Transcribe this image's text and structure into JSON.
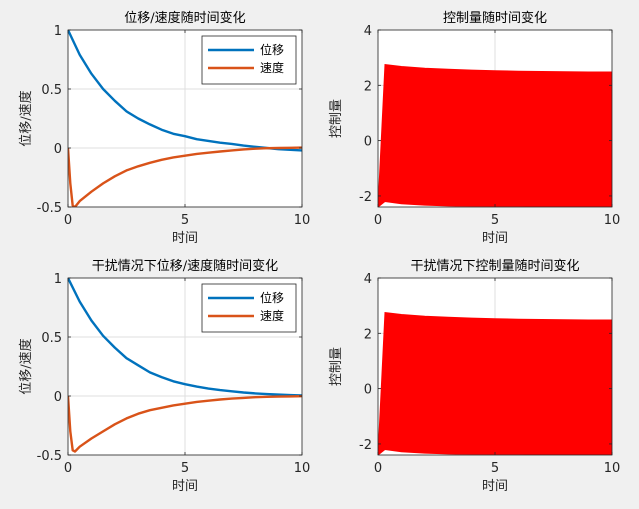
{
  "chart_data": [
    {
      "type": "line",
      "title": "位移/速度随时间变化",
      "xlabel": "时间",
      "ylabel": "位移/速度",
      "xlim": [
        0,
        10
      ],
      "ylim": [
        -0.5,
        1
      ],
      "xticks": [
        0,
        5,
        10
      ],
      "yticks": [
        -0.5,
        0,
        0.5,
        1
      ],
      "grid": true,
      "legend": "top-right",
      "series": [
        {
          "name": "位移",
          "color": "#0072BD",
          "x": [
            0,
            0.5,
            1,
            1.5,
            2,
            2.5,
            3,
            3.5,
            4,
            4.5,
            5,
            5.5,
            6,
            6.5,
            7,
            7.5,
            8,
            8.5,
            9,
            9.5,
            10
          ],
          "y": [
            1,
            0.79,
            0.63,
            0.5,
            0.4,
            0.31,
            0.25,
            0.2,
            0.155,
            0.12,
            0.1,
            0.075,
            0.06,
            0.045,
            0.035,
            0.02,
            0.01,
            0.0,
            -0.01,
            -0.015,
            -0.02
          ]
        },
        {
          "name": "速度",
          "color": "#D95319",
          "x": [
            0,
            0.1,
            0.2,
            0.3,
            0.5,
            1,
            1.5,
            2,
            2.5,
            3,
            3.5,
            4,
            4.5,
            5,
            5.5,
            6,
            6.5,
            7,
            7.5,
            8,
            8.5,
            9,
            9.5,
            10
          ],
          "y": [
            0,
            -0.3,
            -0.49,
            -0.5,
            -0.45,
            -0.37,
            -0.3,
            -0.24,
            -0.19,
            -0.155,
            -0.125,
            -0.1,
            -0.08,
            -0.065,
            -0.05,
            -0.04,
            -0.03,
            -0.02,
            -0.012,
            -0.006,
            -0.002,
            0,
            0.002,
            0.003
          ]
        }
      ]
    },
    {
      "type": "line",
      "title": "控制量随时间变化",
      "xlabel": "时间",
      "ylabel": "控制量",
      "xlim": [
        0,
        10
      ],
      "ylim": [
        -2.4,
        4
      ],
      "xticks": [
        0,
        5,
        10
      ],
      "yticks": [
        -2,
        0,
        2,
        4
      ],
      "grid": true,
      "series": [
        {
          "color": "#FF0000",
          "x": [
            0,
            0.3,
            1,
            2,
            3,
            4,
            5,
            6,
            7,
            8,
            9,
            10
          ],
          "upper": [
            -2.4,
            2.75,
            2.68,
            2.62,
            2.58,
            2.55,
            2.53,
            2.51,
            2.5,
            2.49,
            2.48,
            2.48
          ],
          "lower": [
            -2.4,
            -2.2,
            -2.28,
            -2.33,
            -2.36,
            -2.37,
            -2.38,
            -2.38,
            -2.39,
            -2.39,
            -2.39,
            -2.39
          ]
        }
      ]
    },
    {
      "type": "line",
      "title": "干扰情况下位移/速度随时间变化",
      "xlabel": "时间",
      "ylabel": "位移/速度",
      "xlim": [
        0,
        10
      ],
      "ylim": [
        -0.5,
        1
      ],
      "xticks": [
        0,
        5,
        10
      ],
      "yticks": [
        -0.5,
        0,
        0.5,
        1
      ],
      "grid": true,
      "legend": "top-right",
      "series": [
        {
          "name": "位移",
          "color": "#0072BD",
          "x": [
            0,
            0.5,
            1,
            1.5,
            2,
            2.5,
            3,
            3.5,
            4,
            4.5,
            5,
            5.5,
            6,
            6.5,
            7,
            7.5,
            8,
            8.5,
            9,
            9.5,
            10
          ],
          "y": [
            1,
            0.8,
            0.64,
            0.51,
            0.41,
            0.32,
            0.26,
            0.2,
            0.16,
            0.125,
            0.1,
            0.08,
            0.063,
            0.05,
            0.04,
            0.03,
            0.022,
            0.016,
            0.012,
            0.008,
            0.005
          ]
        },
        {
          "name": "速度",
          "color": "#D95319",
          "x": [
            0,
            0.1,
            0.2,
            0.3,
            0.5,
            1,
            1.5,
            2,
            2.5,
            3,
            3.5,
            4,
            4.5,
            5,
            5.5,
            6,
            6.5,
            7,
            7.5,
            8,
            8.5,
            9,
            9.5,
            10
          ],
          "y": [
            0,
            -0.3,
            -0.46,
            -0.47,
            -0.43,
            -0.36,
            -0.3,
            -0.24,
            -0.19,
            -0.15,
            -0.12,
            -0.1,
            -0.08,
            -0.065,
            -0.05,
            -0.04,
            -0.03,
            -0.022,
            -0.016,
            -0.01,
            -0.007,
            -0.005,
            -0.003,
            -0.002
          ]
        }
      ]
    },
    {
      "type": "line",
      "title": "干扰情况下控制量随时间变化",
      "xlabel": "时间",
      "ylabel": "控制量",
      "xlim": [
        0,
        10
      ],
      "ylim": [
        -2.4,
        4
      ],
      "xticks": [
        0,
        5,
        10
      ],
      "yticks": [
        -2,
        0,
        2,
        4
      ],
      "grid": true,
      "series": [
        {
          "color": "#FF0000",
          "x": [
            0,
            0.3,
            1,
            2,
            3,
            4,
            5,
            6,
            7,
            8,
            9,
            10
          ],
          "upper": [
            -2.4,
            2.75,
            2.68,
            2.62,
            2.58,
            2.55,
            2.53,
            2.51,
            2.5,
            2.49,
            2.48,
            2.48
          ],
          "lower": [
            -2.4,
            -2.2,
            -2.28,
            -2.33,
            -2.36,
            -2.37,
            -2.38,
            -2.38,
            -2.39,
            -2.39,
            -2.39,
            -2.39
          ]
        }
      ]
    }
  ]
}
